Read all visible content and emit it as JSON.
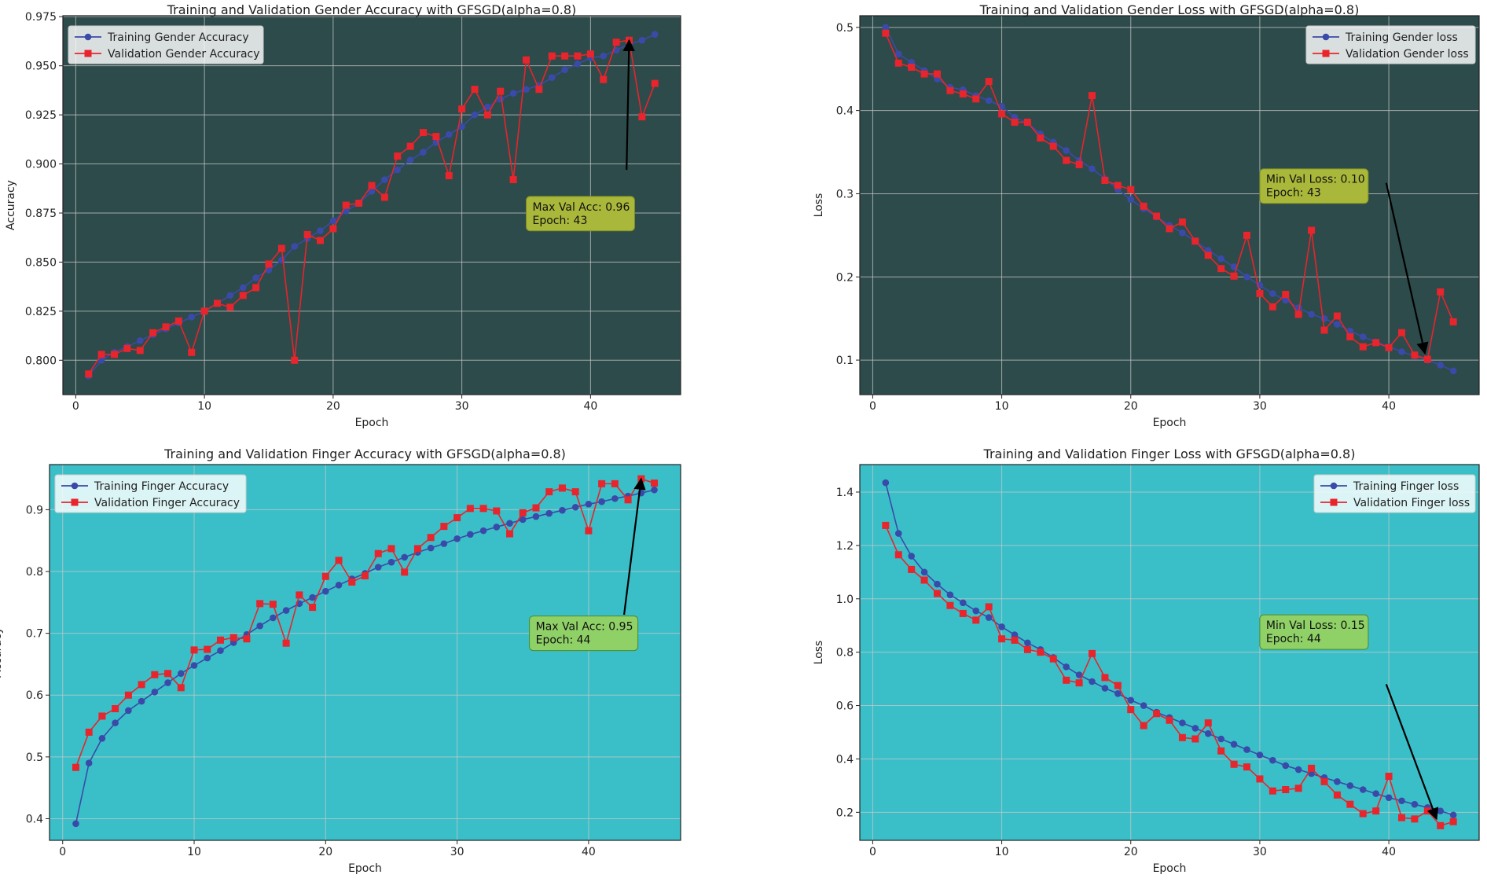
{
  "colors": {
    "train": "#3a4aa8",
    "val": "#e8242c",
    "bg_gender": "#2d4b4b",
    "bg_finger": "#3abfc8",
    "grid": "#c8c8c8",
    "annot_dark": "#a9b83a",
    "annot_light": "#8fd067"
  },
  "chart_data": [
    {
      "type": "line",
      "title": "Training and Validation Gender Accuracy with GFSGD(alpha=0.8)",
      "xlabel": "Epoch",
      "ylabel": "Accuracy",
      "xlim": [
        -1,
        47
      ],
      "ylim": [
        0.7825,
        0.9755
      ],
      "xticks": [
        0,
        10,
        20,
        30,
        40
      ],
      "xtick_labels": [
        "0",
        "10",
        "20",
        "30",
        "40"
      ],
      "yticks": [
        0.8,
        0.825,
        0.85,
        0.875,
        0.9,
        0.925,
        0.95,
        0.975
      ],
      "ytick_labels": [
        "0.800",
        "0.825",
        "0.850",
        "0.875",
        "0.900",
        "0.925",
        "0.950",
        "0.975"
      ],
      "legend_position": "top-left",
      "background": "dark",
      "x": [
        1,
        2,
        3,
        4,
        5,
        6,
        7,
        8,
        9,
        10,
        11,
        12,
        13,
        14,
        15,
        16,
        17,
        18,
        19,
        20,
        21,
        22,
        23,
        24,
        25,
        26,
        27,
        28,
        29,
        30,
        31,
        32,
        33,
        34,
        35,
        36,
        37,
        38,
        39,
        40,
        41,
        42,
        43,
        44,
        45
      ],
      "series": [
        {
          "name": "Training Gender Accuracy",
          "color_key": "train",
          "marker": "circle",
          "values": [
            0.792,
            0.8,
            0.804,
            0.807,
            0.81,
            0.813,
            0.816,
            0.819,
            0.822,
            0.825,
            0.829,
            0.833,
            0.837,
            0.842,
            0.846,
            0.851,
            0.858,
            0.862,
            0.866,
            0.871,
            0.876,
            0.88,
            0.886,
            0.892,
            0.897,
            0.902,
            0.906,
            0.911,
            0.915,
            0.919,
            0.925,
            0.929,
            0.933,
            0.936,
            0.938,
            0.94,
            0.944,
            0.948,
            0.951,
            0.954,
            0.955,
            0.958,
            0.961,
            0.963,
            0.966
          ]
        },
        {
          "name": "Validation Gender Accuracy",
          "color_key": "val",
          "marker": "square",
          "values": [
            0.793,
            0.803,
            0.803,
            0.806,
            0.805,
            0.814,
            0.817,
            0.82,
            0.804,
            0.825,
            0.829,
            0.827,
            0.833,
            0.837,
            0.849,
            0.857,
            0.8,
            0.864,
            0.861,
            0.867,
            0.879,
            0.88,
            0.889,
            0.883,
            0.904,
            0.909,
            0.916,
            0.914,
            0.894,
            0.928,
            0.938,
            0.925,
            0.937,
            0.892,
            0.953,
            0.938,
            0.955,
            0.955,
            0.955,
            0.956,
            0.943,
            0.962,
            0.963,
            0.924,
            0.941
          ]
        }
      ],
      "annotation": {
        "line1": "Max Val Acc: 0.96",
        "line2": "Epoch: 43",
        "box_x": 35,
        "box_y": 0.8835,
        "arrow_from": [
          42.8,
          0.897
        ],
        "arrow_to": [
          43,
          0.963
        ],
        "color_key": "annot_dark"
      }
    },
    {
      "type": "line",
      "title": "Training and Validation Gender Loss with GFSGD(alpha=0.8)",
      "xlabel": "Epoch",
      "ylabel": "Loss",
      "xlim": [
        -1,
        47
      ],
      "ylim": [
        0.0585,
        0.514
      ],
      "xticks": [
        0,
        10,
        20,
        30,
        40
      ],
      "xtick_labels": [
        "0",
        "10",
        "20",
        "30",
        "40"
      ],
      "yticks": [
        0.1,
        0.2,
        0.3,
        0.4,
        0.5
      ],
      "ytick_labels": [
        "0.1",
        "0.2",
        "0.3",
        "0.4",
        "0.5"
      ],
      "legend_position": "top-right",
      "background": "dark",
      "x": [
        1,
        2,
        3,
        4,
        5,
        6,
        7,
        8,
        9,
        10,
        11,
        12,
        13,
        14,
        15,
        16,
        17,
        18,
        19,
        20,
        21,
        22,
        23,
        24,
        25,
        26,
        27,
        28,
        29,
        30,
        31,
        32,
        33,
        34,
        35,
        36,
        37,
        38,
        39,
        40,
        41,
        42,
        43,
        44,
        45
      ],
      "series": [
        {
          "name": "Training Gender loss",
          "color_key": "train",
          "marker": "circle",
          "values": [
            0.5,
            0.468,
            0.458,
            0.448,
            0.438,
            0.428,
            0.425,
            0.418,
            0.412,
            0.405,
            0.392,
            0.385,
            0.372,
            0.362,
            0.352,
            0.34,
            0.33,
            0.318,
            0.305,
            0.293,
            0.282,
            0.272,
            0.262,
            0.253,
            0.243,
            0.232,
            0.222,
            0.212,
            0.2,
            0.19,
            0.18,
            0.172,
            0.163,
            0.155,
            0.15,
            0.143,
            0.135,
            0.128,
            0.122,
            0.116,
            0.11,
            0.105,
            0.1,
            0.094,
            0.087
          ]
        },
        {
          "name": "Validation Gender loss",
          "color_key": "val",
          "marker": "square",
          "values": [
            0.493,
            0.457,
            0.452,
            0.444,
            0.444,
            0.424,
            0.42,
            0.414,
            0.435,
            0.396,
            0.386,
            0.386,
            0.367,
            0.357,
            0.34,
            0.335,
            0.418,
            0.316,
            0.31,
            0.305,
            0.285,
            0.273,
            0.258,
            0.266,
            0.243,
            0.226,
            0.21,
            0.201,
            0.25,
            0.18,
            0.164,
            0.179,
            0.155,
            0.256,
            0.136,
            0.153,
            0.128,
            0.116,
            0.121,
            0.115,
            0.133,
            0.106,
            0.101,
            0.182,
            0.146
          ]
        }
      ],
      "annotation": {
        "line1": "Min Val Loss: 0.10",
        "line2": "Epoch: 43",
        "box_x": 30,
        "box_y": 0.33,
        "arrow_from": [
          39.8,
          0.313
        ],
        "arrow_to": [
          42.8,
          0.108
        ],
        "color_key": "annot_dark"
      }
    },
    {
      "type": "line",
      "title": "Training and Validation Finger Accuracy with GFSGD(alpha=0.8)",
      "xlabel": "Epoch",
      "ylabel": "Accuracy",
      "xlim": [
        -1,
        47
      ],
      "ylim": [
        0.365,
        0.973
      ],
      "xticks": [
        0,
        10,
        20,
        30,
        40
      ],
      "xtick_labels": [
        "0",
        "10",
        "20",
        "30",
        "40"
      ],
      "yticks": [
        0.4,
        0.5,
        0.6,
        0.7,
        0.8,
        0.9
      ],
      "ytick_labels": [
        "0.4",
        "0.5",
        "0.6",
        "0.7",
        "0.8",
        "0.9"
      ],
      "legend_position": "top-left",
      "background": "light",
      "x": [
        1,
        2,
        3,
        4,
        5,
        6,
        7,
        8,
        9,
        10,
        11,
        12,
        13,
        14,
        15,
        16,
        17,
        18,
        19,
        20,
        21,
        22,
        23,
        24,
        25,
        26,
        27,
        28,
        29,
        30,
        31,
        32,
        33,
        34,
        35,
        36,
        37,
        38,
        39,
        40,
        41,
        42,
        43,
        44,
        45
      ],
      "series": [
        {
          "name": "Training Finger Accuracy",
          "color_key": "train",
          "marker": "circle",
          "values": [
            0.392,
            0.49,
            0.53,
            0.555,
            0.575,
            0.59,
            0.605,
            0.62,
            0.635,
            0.648,
            0.66,
            0.672,
            0.685,
            0.698,
            0.712,
            0.725,
            0.737,
            0.748,
            0.758,
            0.768,
            0.778,
            0.788,
            0.797,
            0.807,
            0.815,
            0.823,
            0.831,
            0.838,
            0.845,
            0.853,
            0.86,
            0.866,
            0.872,
            0.878,
            0.884,
            0.889,
            0.894,
            0.899,
            0.904,
            0.909,
            0.913,
            0.918,
            0.922,
            0.927,
            0.932
          ]
        },
        {
          "name": "Validation Finger Accuracy",
          "color_key": "val",
          "marker": "square",
          "values": [
            0.483,
            0.54,
            0.566,
            0.578,
            0.6,
            0.617,
            0.633,
            0.635,
            0.612,
            0.673,
            0.674,
            0.689,
            0.693,
            0.691,
            0.748,
            0.747,
            0.684,
            0.762,
            0.742,
            0.792,
            0.818,
            0.783,
            0.793,
            0.829,
            0.837,
            0.799,
            0.837,
            0.855,
            0.873,
            0.887,
            0.902,
            0.902,
            0.898,
            0.861,
            0.895,
            0.903,
            0.929,
            0.935,
            0.929,
            0.866,
            0.942,
            0.942,
            0.916,
            0.95,
            0.943
          ]
        }
      ],
      "annotation": {
        "line1": "Max Val Acc: 0.95",
        "line2": "Epoch: 44",
        "box_x": 35.5,
        "box_y": 0.728,
        "arrow_from": [
          42.7,
          0.73
        ],
        "arrow_to": [
          44,
          0.95
        ],
        "color_key": "annot_light"
      }
    },
    {
      "type": "line",
      "title": "Training and Validation Finger Loss with GFSGD(alpha=0.8)",
      "xlabel": "Epoch",
      "ylabel": "Loss",
      "xlim": [
        -1,
        47
      ],
      "ylim": [
        0.095,
        1.503
      ],
      "xticks": [
        0,
        10,
        20,
        30,
        40
      ],
      "xtick_labels": [
        "0",
        "10",
        "20",
        "30",
        "40"
      ],
      "yticks": [
        0.2,
        0.4,
        0.6,
        0.8,
        1.0,
        1.2,
        1.4
      ],
      "ytick_labels": [
        "0.2",
        "0.4",
        "0.6",
        "0.8",
        "1.0",
        "1.2",
        "1.4"
      ],
      "legend_position": "top-right",
      "background": "light",
      "x": [
        1,
        2,
        3,
        4,
        5,
        6,
        7,
        8,
        9,
        10,
        11,
        12,
        13,
        14,
        15,
        16,
        17,
        18,
        19,
        20,
        21,
        22,
        23,
        24,
        25,
        26,
        27,
        28,
        29,
        30,
        31,
        32,
        33,
        34,
        35,
        36,
        37,
        38,
        39,
        40,
        41,
        42,
        43,
        44,
        45
      ],
      "series": [
        {
          "name": "Training Finger loss",
          "color_key": "train",
          "marker": "circle",
          "values": [
            1.435,
            1.245,
            1.16,
            1.1,
            1.055,
            1.015,
            0.985,
            0.955,
            0.93,
            0.895,
            0.865,
            0.835,
            0.81,
            0.78,
            0.745,
            0.715,
            0.69,
            0.665,
            0.645,
            0.62,
            0.6,
            0.575,
            0.555,
            0.535,
            0.515,
            0.495,
            0.475,
            0.455,
            0.435,
            0.415,
            0.395,
            0.375,
            0.36,
            0.345,
            0.33,
            0.315,
            0.3,
            0.285,
            0.27,
            0.255,
            0.243,
            0.23,
            0.218,
            0.205,
            0.19
          ]
        },
        {
          "name": "Validation Finger loss",
          "color_key": "val",
          "marker": "square",
          "values": [
            1.275,
            1.165,
            1.11,
            1.07,
            1.02,
            0.975,
            0.945,
            0.92,
            0.97,
            0.85,
            0.845,
            0.81,
            0.8,
            0.775,
            0.695,
            0.685,
            0.795,
            0.705,
            0.675,
            0.585,
            0.525,
            0.57,
            0.545,
            0.48,
            0.475,
            0.535,
            0.43,
            0.38,
            0.37,
            0.325,
            0.28,
            0.285,
            0.29,
            0.365,
            0.315,
            0.265,
            0.23,
            0.195,
            0.205,
            0.335,
            0.18,
            0.175,
            0.205,
            0.15,
            0.165
          ]
        }
      ],
      "annotation": {
        "line1": "Min Val Loss: 0.15",
        "line2": "Epoch: 44",
        "box_x": 30,
        "box_y": 0.94,
        "arrow_from": [
          39.8,
          0.68
        ],
        "arrow_to": [
          43.7,
          0.175
        ],
        "color_key": "annot_light"
      }
    }
  ]
}
